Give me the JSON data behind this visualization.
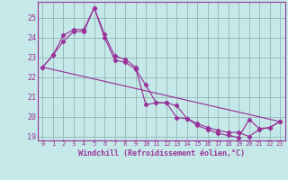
{
  "xlabel": "Windchill (Refroidissement éolien,°C)",
  "bg_color": "#c5e8e8",
  "line_color": "#993399",
  "grid_color": "#99bbbb",
  "ylim": [
    18.8,
    25.8
  ],
  "xlim": [
    -0.5,
    23.5
  ],
  "yticks": [
    19,
    20,
    21,
    22,
    23,
    24,
    25
  ],
  "xticks": [
    0,
    1,
    2,
    3,
    4,
    5,
    6,
    7,
    8,
    9,
    10,
    11,
    12,
    13,
    14,
    15,
    16,
    17,
    18,
    19,
    20,
    21,
    22,
    23
  ],
  "series1_x": [
    0,
    1,
    2,
    3,
    4,
    5,
    6,
    7,
    8,
    9,
    10,
    11,
    12,
    13,
    14,
    15,
    16,
    17,
    18,
    19,
    20,
    21,
    22,
    23
  ],
  "series1_y": [
    22.5,
    23.1,
    24.1,
    24.4,
    24.4,
    25.5,
    24.15,
    23.05,
    22.9,
    22.5,
    20.6,
    20.7,
    20.7,
    20.55,
    19.9,
    19.65,
    19.45,
    19.3,
    19.2,
    19.2,
    19.0,
    19.35,
    19.45,
    19.75
  ],
  "series2_x": [
    0,
    1,
    2,
    3,
    4,
    5,
    6,
    7,
    8,
    9,
    10,
    11,
    12,
    13,
    14,
    15,
    16,
    17,
    18,
    19,
    20,
    21,
    22,
    23
  ],
  "series2_y": [
    22.5,
    23.1,
    23.8,
    24.3,
    24.3,
    25.5,
    24.0,
    22.85,
    22.75,
    22.4,
    21.6,
    20.7,
    20.7,
    19.95,
    19.9,
    19.55,
    19.35,
    19.15,
    19.05,
    18.95,
    19.85,
    19.4,
    19.45,
    19.75
  ],
  "series3_x": [
    0,
    23
  ],
  "series3_y": [
    22.5,
    19.75
  ]
}
